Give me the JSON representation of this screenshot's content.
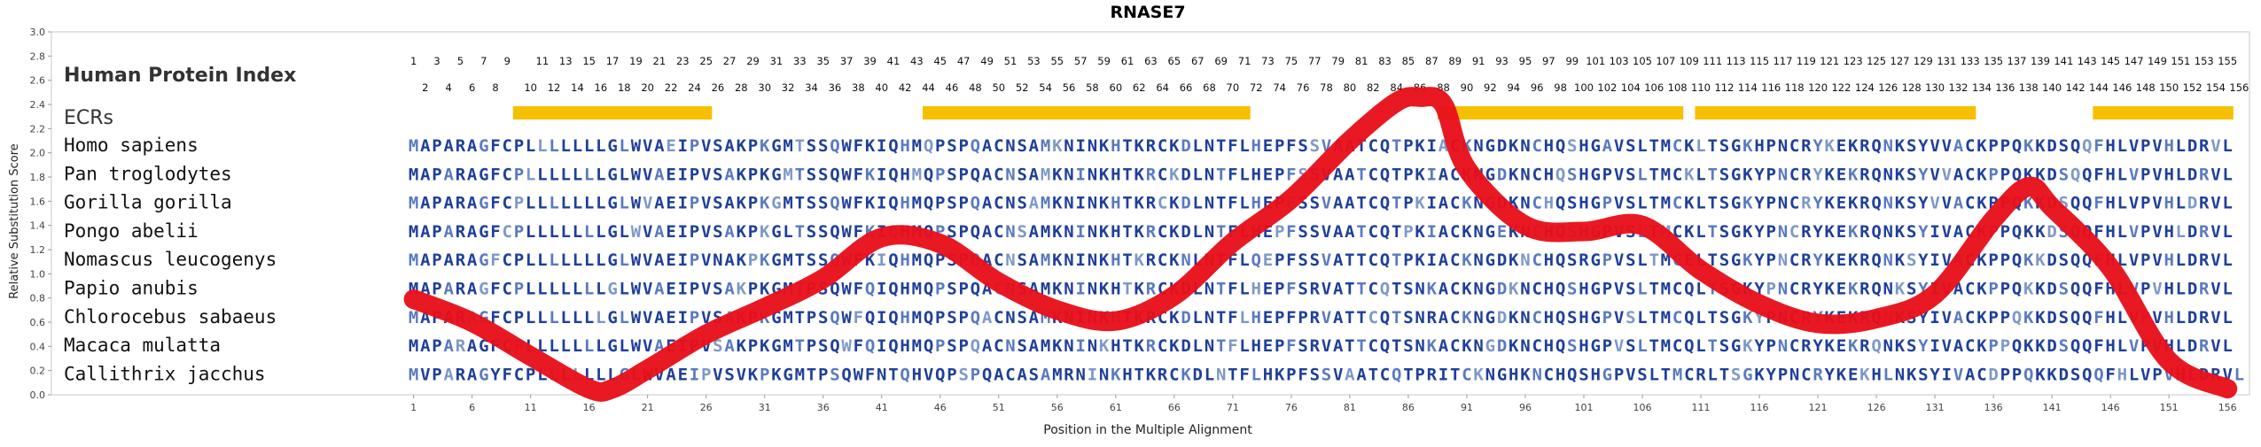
{
  "chart_data": {
    "type": "line",
    "title": "RNASE7",
    "xlabel": "Position in the Multiple Alignment",
    "ylabel": "Relative Substitution Score",
    "ylim": [
      0,
      3.0
    ],
    "y_ticks": [
      "0.0",
      "0.2",
      "0.4",
      "0.6",
      "0.8",
      "1.0",
      "1.2",
      "1.4",
      "1.6",
      "1.8",
      "2.0",
      "2.2",
      "2.4",
      "2.6",
      "2.8",
      "3.0"
    ],
    "xlim": [
      1,
      157
    ],
    "x_ticks": [
      1,
      6,
      11,
      16,
      21,
      26,
      31,
      36,
      41,
      46,
      51,
      56,
      61,
      66,
      71,
      76,
      81,
      86,
      91,
      96,
      101,
      106,
      111,
      116,
      121,
      126,
      131,
      136,
      141,
      146,
      151,
      156
    ],
    "index_label": "Human Protein Index",
    "ecr_label": "ECRs",
    "ecr_color": "#F5C000",
    "line_color": "#E8101A",
    "ecrs": [
      [
        10,
        26
      ],
      [
        45,
        72
      ],
      [
        89,
        109
      ],
      [
        111,
        134
      ],
      [
        145,
        156
      ]
    ],
    "human_index": [
      1,
      2,
      3,
      4,
      5,
      6,
      7,
      8,
      9,
      10,
      11,
      12,
      13,
      14,
      15,
      16,
      17,
      18,
      19,
      20,
      21,
      22,
      23,
      24,
      25,
      26,
      27,
      28,
      29,
      30,
      31,
      32,
      33,
      34,
      35,
      36,
      37,
      38,
      39,
      40,
      41,
      42,
      43,
      44,
      45,
      46,
      47,
      48,
      49,
      50,
      51,
      52,
      53,
      54,
      55,
      56,
      57,
      58,
      59,
      60,
      61,
      62,
      63,
      64,
      65,
      66,
      67,
      68,
      69,
      70,
      71,
      72,
      73,
      74,
      75,
      76,
      77,
      78,
      79,
      80,
      81,
      82,
      83,
      84,
      85,
      86,
      87,
      88,
      89,
      90,
      91,
      92,
      93,
      94,
      95,
      96,
      97,
      98,
      99,
      100,
      101,
      102,
      103,
      104,
      105,
      106,
      107,
      108,
      109,
      110,
      111,
      112,
      113,
      114,
      115,
      116,
      117,
      118,
      119,
      120,
      121,
      122,
      123,
      124,
      125,
      126,
      127,
      128,
      129,
      130,
      131,
      132,
      133,
      134,
      135,
      136,
      137,
      138,
      139,
      140,
      141,
      142,
      143,
      144,
      145,
      146,
      147,
      148,
      149,
      150,
      151,
      152,
      153,
      154,
      155,
      156
    ],
    "species": [
      {
        "name": "Homo sapiens",
        "seq": "MAPARAGFCPLLLLLLLGLWVAEIPVSAKPKGMTSSQWFKIQHMQPSPQACNSAMKNINKHTKRCKDLNTFLHEPFSSVAATCQTPKIACKNGDKNCHQSHGAVSLTMCKLTSGKHPNCRYKEKRQNKSYVVACKPPQKKDSQQFHLVPVHLDRVL"
      },
      {
        "name": "Pan troglodytes",
        "seq": "MAPARAGFCPLLLLLLLGLWVAEIPVSAKPKGMTSSQWFKIQHMQPSPQACNSAMKNINKHTKRCKDLNTFLHEPFSSVAATCQTPKIACKNGDKNCHQSHGPVSLTMCKLTSGKYPNCRYKEKRQNKSYVVACKPPQKKDSQQFHLVPVHLDRVL"
      },
      {
        "name": "Gorilla gorilla",
        "seq": "MAPARAGFCPLLLLLLLGLWVAEIPVSAKPKGMTSSQWFKIQHMQPSPQACNSAMKNINKHTKRCKDLNTFLHEPFSSVAATCQTPKIACKNGDKNCHQSHGPVSLTMCKLTSGKYPNCRYKEKRQNKSYVVACKPPQKKDSQQFHLVPVHLDRVL"
      },
      {
        "name": "Pongo abelii",
        "seq": "MAPARAGFCPLLLLLLLGLWVAEIPVSAKPKGLTSSQWFKIQHMQPSPQACNSAMKNINKHTKRCKDLNTFLHEPFSSVAATCQTPKIACKNGEKNCHQSHGPVSLTMCKLTSGKYPNCRYKEKRQNKSYIVACKPPQKKDSQQFHLVPVHLDRVL"
      },
      {
        "name": "Nomascus leucogenys",
        "seq": "MAPARAGFCPLLLLLLLGLWVAEIPVNAKPKGMTSSQWFKIQHMQPSPQACNSAMKNINKHTKRCKNLNTFLQEPFSSVATTCQTPKIACKNGDKNCHQSRGPVSLTMCELTSGKYPNCRYKEKRQNKSYIVACKPPQKKDSQQFHLVPVHLDRVL"
      },
      {
        "name": "Papio anubis",
        "seq": "MAPARAGFCPLLLLLLLGLWVAEIPVSAKPKGMTPSQWFQIQHMQPSPQACNSAMKNINKHTKRCKDLNTFLHEPFSRVATTCQTSNKACKNGDKNCHQSHGPVSLTMCQLTSGKYPNCRYKEKRQNKSYIVACKPPQKKDSQQFHLVPVHLDRVL"
      },
      {
        "name": "Chlorocebus sabaeus",
        "seq": "MAPARAGFCPLLLLLLLGLWVAEIPVSAKPKGMTPSQWFQIQHMQPSPQACNSAMKNINKHTKRCKDLNTFLHEPFPRVATTCQTSNRACKNGDKNCHQSHGPVSLTMCQLTSGKYPNCRYKEKRQNKSYIVACKPPQKKDSQQFHLVPVHLDRVL"
      },
      {
        "name": "Macaca mulatta",
        "seq": "MAPARAGFCPLLLLLLLGLWVAEIPVSAKPKGMTPSQWFQIQHMQPSPQACNSAMKNINKHTKRCKDLNTFLHEPFSRVATTCQTSNKACKNGDKNCHQSHGPVSLTMCQLTSGKYPNCRYKEKRQNKSYIVACKPPQKKDSQQFHLVPVHLDRVL"
      },
      {
        "name": "Callithrix jacchus",
        "seq": "MVPARAGYFCPLLLLLLLGLWVAEIPVSVKPKGMTPSQWFNTQHVQPSPQACASAMRNINKHTKRCKDLNTFLHKPFSSVAATCQTPRITCKNGHKNCHQSHGPVSLTMCRLTSGKYPNCRYKEKHLNKSYIVACDPPQKKDSQQFHLVPVHLDRVL"
      }
    ],
    "series": [
      {
        "x": [
          1,
          6,
          11,
          16,
          18,
          21,
          26,
          31,
          36,
          41,
          46,
          51,
          56,
          61,
          66,
          71,
          76,
          81,
          85,
          87,
          89,
          91,
          96,
          101,
          106,
          111,
          116,
          121,
          126,
          131,
          136,
          139,
          141,
          146,
          151,
          156
        ],
        "y": [
          0.79,
          0.6,
          0.32,
          0.05,
          0.05,
          0.21,
          0.5,
          0.72,
          0.96,
          1.3,
          1.25,
          0.93,
          0.7,
          0.61,
          0.82,
          1.26,
          1.62,
          2.1,
          2.42,
          2.46,
          2.4,
          1.87,
          1.4,
          1.35,
          1.4,
          1.03,
          0.75,
          0.59,
          0.63,
          0.83,
          1.45,
          1.72,
          1.55,
          1.05,
          0.28,
          0.05
        ]
      }
    ]
  }
}
